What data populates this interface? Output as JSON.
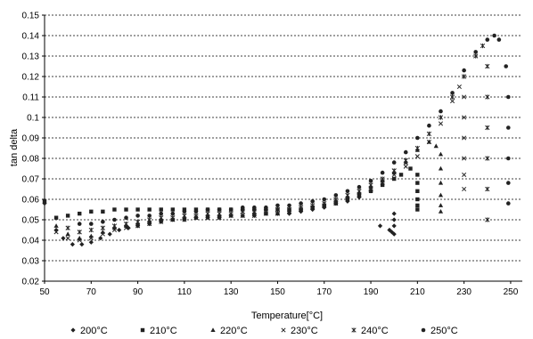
{
  "chart_data": {
    "type": "scatter",
    "title": "",
    "xlabel": "Temperature[°C]",
    "ylabel": "tan delta",
    "xlim": [
      50,
      255
    ],
    "ylim": [
      0.02,
      0.15
    ],
    "x_ticks": [
      "50",
      "70",
      "90",
      "110",
      "130",
      "150",
      "170",
      "190",
      "210",
      "230",
      "250"
    ],
    "y_ticks": [
      "0.02",
      "0.03",
      "0.04",
      "0.05",
      "0.06",
      "0.07",
      "0.08",
      "0.09",
      "0.1",
      "0.11",
      "0.12",
      "0.13",
      "0.14",
      "0.15"
    ],
    "grid": "horizontal dashed",
    "legend_position": "bottom",
    "series": [
      {
        "name": "200°C",
        "marker": "diamond",
        "points": [
          [
            50,
            0.058
          ],
          [
            55,
            0.045
          ],
          [
            58,
            0.041
          ],
          [
            62,
            0.038
          ],
          [
            66,
            0.038
          ],
          [
            70,
            0.039
          ],
          [
            74,
            0.041
          ],
          [
            78,
            0.043
          ],
          [
            82,
            0.045
          ],
          [
            86,
            0.046
          ],
          [
            90,
            0.047
          ],
          [
            95,
            0.048
          ],
          [
            100,
            0.049
          ],
          [
            105,
            0.05
          ],
          [
            110,
            0.05
          ],
          [
            115,
            0.051
          ],
          [
            120,
            0.051
          ],
          [
            125,
            0.051
          ],
          [
            130,
            0.052
          ],
          [
            135,
            0.052
          ],
          [
            140,
            0.052
          ],
          [
            145,
            0.053
          ],
          [
            150,
            0.053
          ],
          [
            155,
            0.053
          ],
          [
            160,
            0.054
          ],
          [
            165,
            0.055
          ],
          [
            170,
            0.056
          ],
          [
            175,
            0.058
          ],
          [
            180,
            0.059
          ],
          [
            185,
            0.061
          ],
          [
            190,
            0.064
          ],
          [
            194,
            0.047
          ],
          [
            198,
            0.045
          ],
          [
            199,
            0.044
          ],
          [
            200,
            0.043
          ],
          [
            200,
            0.047
          ],
          [
            200,
            0.05
          ],
          [
            200,
            0.053
          ]
        ]
      },
      {
        "name": "210°C",
        "marker": "square",
        "points": [
          [
            50,
            0.059
          ],
          [
            55,
            0.051
          ],
          [
            60,
            0.052
          ],
          [
            65,
            0.053
          ],
          [
            70,
            0.054
          ],
          [
            75,
            0.054
          ],
          [
            80,
            0.055
          ],
          [
            85,
            0.055
          ],
          [
            90,
            0.055
          ],
          [
            95,
            0.055
          ],
          [
            100,
            0.055
          ],
          [
            105,
            0.055
          ],
          [
            110,
            0.055
          ],
          [
            115,
            0.055
          ],
          [
            120,
            0.055
          ],
          [
            125,
            0.055
          ],
          [
            130,
            0.055
          ],
          [
            135,
            0.055
          ],
          [
            140,
            0.055
          ],
          [
            145,
            0.055
          ],
          [
            150,
            0.055
          ],
          [
            155,
            0.055
          ],
          [
            160,
            0.055
          ],
          [
            165,
            0.056
          ],
          [
            170,
            0.057
          ],
          [
            175,
            0.058
          ],
          [
            180,
            0.06
          ],
          [
            185,
            0.062
          ],
          [
            190,
            0.064
          ],
          [
            195,
            0.067
          ],
          [
            200,
            0.07
          ],
          [
            203,
            0.072
          ],
          [
            207,
            0.075
          ],
          [
            210,
            0.072
          ],
          [
            210,
            0.068
          ],
          [
            210,
            0.064
          ],
          [
            210,
            0.06
          ],
          [
            210,
            0.057
          ],
          [
            210,
            0.055
          ]
        ]
      },
      {
        "name": "220°C",
        "marker": "triangle",
        "points": [
          [
            55,
            0.047
          ],
          [
            60,
            0.043
          ],
          [
            65,
            0.041
          ],
          [
            70,
            0.042
          ],
          [
            75,
            0.044
          ],
          [
            80,
            0.046
          ],
          [
            85,
            0.047
          ],
          [
            90,
            0.048
          ],
          [
            95,
            0.049
          ],
          [
            100,
            0.05
          ],
          [
            105,
            0.05
          ],
          [
            110,
            0.051
          ],
          [
            115,
            0.051
          ],
          [
            120,
            0.052
          ],
          [
            125,
            0.052
          ],
          [
            130,
            0.052
          ],
          [
            135,
            0.052
          ],
          [
            140,
            0.053
          ],
          [
            145,
            0.053
          ],
          [
            150,
            0.053
          ],
          [
            155,
            0.054
          ],
          [
            160,
            0.055
          ],
          [
            165,
            0.056
          ],
          [
            170,
            0.057
          ],
          [
            175,
            0.059
          ],
          [
            180,
            0.061
          ],
          [
            185,
            0.063
          ],
          [
            190,
            0.066
          ],
          [
            195,
            0.069
          ],
          [
            200,
            0.073
          ],
          [
            205,
            0.078
          ],
          [
            210,
            0.084
          ],
          [
            215,
            0.088
          ],
          [
            218,
            0.086
          ],
          [
            220,
            0.082
          ],
          [
            220,
            0.075
          ],
          [
            220,
            0.068
          ],
          [
            220,
            0.062
          ],
          [
            220,
            0.057
          ],
          [
            220,
            0.054
          ]
        ]
      },
      {
        "name": "230°C",
        "marker": "x",
        "points": [
          [
            55,
            0.044
          ],
          [
            60,
            0.041
          ],
          [
            65,
            0.04
          ],
          [
            70,
            0.041
          ],
          [
            75,
            0.043
          ],
          [
            80,
            0.045
          ],
          [
            85,
            0.046
          ],
          [
            90,
            0.047
          ],
          [
            95,
            0.048
          ],
          [
            100,
            0.049
          ],
          [
            105,
            0.05
          ],
          [
            110,
            0.05
          ],
          [
            115,
            0.051
          ],
          [
            120,
            0.051
          ],
          [
            125,
            0.051
          ],
          [
            130,
            0.052
          ],
          [
            135,
            0.052
          ],
          [
            140,
            0.052
          ],
          [
            145,
            0.053
          ],
          [
            150,
            0.053
          ],
          [
            155,
            0.054
          ],
          [
            160,
            0.055
          ],
          [
            165,
            0.056
          ],
          [
            170,
            0.057
          ],
          [
            175,
            0.058
          ],
          [
            180,
            0.06
          ],
          [
            185,
            0.062
          ],
          [
            190,
            0.065
          ],
          [
            195,
            0.068
          ],
          [
            200,
            0.072
          ],
          [
            205,
            0.076
          ],
          [
            210,
            0.081
          ],
          [
            215,
            0.088
          ],
          [
            220,
            0.097
          ],
          [
            225,
            0.108
          ],
          [
            228,
            0.115
          ],
          [
            230,
            0.11
          ],
          [
            230,
            0.1
          ],
          [
            230,
            0.09
          ],
          [
            230,
            0.08
          ],
          [
            230,
            0.072
          ],
          [
            230,
            0.065
          ]
        ]
      },
      {
        "name": "240°C",
        "marker": "star",
        "points": [
          [
            60,
            0.046
          ],
          [
            65,
            0.044
          ],
          [
            70,
            0.045
          ],
          [
            75,
            0.046
          ],
          [
            80,
            0.047
          ],
          [
            85,
            0.048
          ],
          [
            90,
            0.049
          ],
          [
            95,
            0.05
          ],
          [
            100,
            0.051
          ],
          [
            105,
            0.051
          ],
          [
            110,
            0.052
          ],
          [
            115,
            0.052
          ],
          [
            120,
            0.053
          ],
          [
            125,
            0.053
          ],
          [
            130,
            0.053
          ],
          [
            135,
            0.054
          ],
          [
            140,
            0.054
          ],
          [
            145,
            0.054
          ],
          [
            150,
            0.055
          ],
          [
            155,
            0.055
          ],
          [
            160,
            0.056
          ],
          [
            165,
            0.057
          ],
          [
            170,
            0.058
          ],
          [
            175,
            0.06
          ],
          [
            180,
            0.062
          ],
          [
            185,
            0.064
          ],
          [
            190,
            0.067
          ],
          [
            195,
            0.07
          ],
          [
            200,
            0.074
          ],
          [
            205,
            0.079
          ],
          [
            210,
            0.085
          ],
          [
            215,
            0.092
          ],
          [
            220,
            0.1
          ],
          [
            225,
            0.11
          ],
          [
            230,
            0.12
          ],
          [
            235,
            0.13
          ],
          [
            238,
            0.135
          ],
          [
            240,
            0.125
          ],
          [
            240,
            0.11
          ],
          [
            240,
            0.095
          ],
          [
            240,
            0.08
          ],
          [
            240,
            0.065
          ],
          [
            240,
            0.05
          ]
        ]
      },
      {
        "name": "250°C",
        "marker": "circle",
        "points": [
          [
            65,
            0.048
          ],
          [
            70,
            0.048
          ],
          [
            75,
            0.049
          ],
          [
            80,
            0.05
          ],
          [
            85,
            0.051
          ],
          [
            90,
            0.052
          ],
          [
            95,
            0.052
          ],
          [
            100,
            0.053
          ],
          [
            105,
            0.053
          ],
          [
            110,
            0.054
          ],
          [
            115,
            0.054
          ],
          [
            120,
            0.055
          ],
          [
            125,
            0.055
          ],
          [
            130,
            0.055
          ],
          [
            135,
            0.056
          ],
          [
            140,
            0.056
          ],
          [
            145,
            0.056
          ],
          [
            150,
            0.057
          ],
          [
            155,
            0.057
          ],
          [
            160,
            0.058
          ],
          [
            165,
            0.059
          ],
          [
            170,
            0.06
          ],
          [
            175,
            0.062
          ],
          [
            180,
            0.064
          ],
          [
            185,
            0.066
          ],
          [
            190,
            0.069
          ],
          [
            195,
            0.073
          ],
          [
            200,
            0.078
          ],
          [
            205,
            0.083
          ],
          [
            210,
            0.09
          ],
          [
            215,
            0.096
          ],
          [
            220,
            0.103
          ],
          [
            225,
            0.112
          ],
          [
            230,
            0.123
          ],
          [
            235,
            0.132
          ],
          [
            240,
            0.138
          ],
          [
            243,
            0.14
          ],
          [
            245,
            0.138
          ],
          [
            248,
            0.125
          ],
          [
            249,
            0.11
          ],
          [
            249,
            0.095
          ],
          [
            249,
            0.08
          ],
          [
            249,
            0.068
          ],
          [
            249,
            0.058
          ]
        ]
      }
    ]
  }
}
